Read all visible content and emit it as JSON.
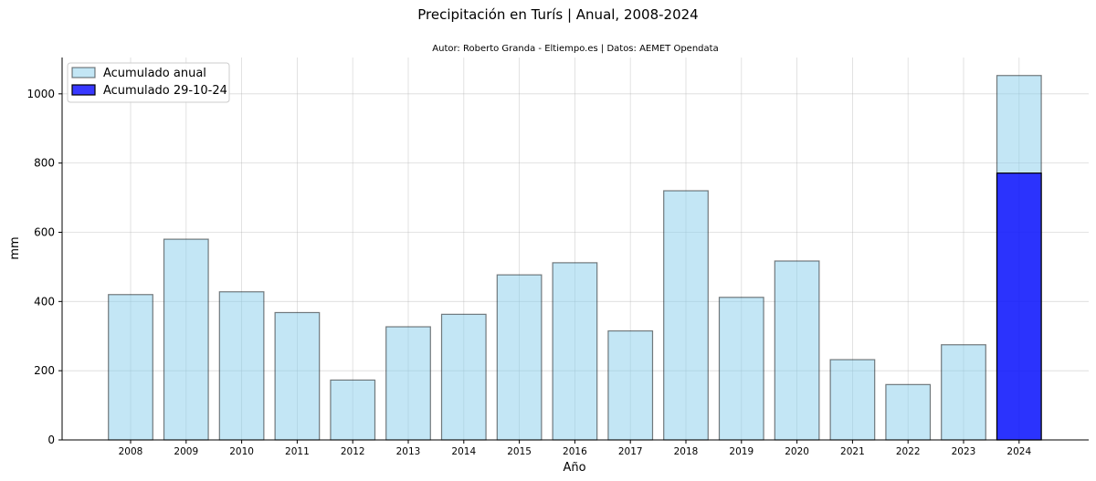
{
  "chart_data": {
    "type": "bar",
    "title": "Precipitación en Turís | Anual, 2008-2024",
    "subtitle": "Autor: Roberto Granda - Eltiempo.es | Datos: AEMET Opendata",
    "xlabel": "Año",
    "ylabel": "mm",
    "categories": [
      "2008",
      "2009",
      "2010",
      "2011",
      "2012",
      "2013",
      "2014",
      "2015",
      "2016",
      "2017",
      "2018",
      "2019",
      "2020",
      "2021",
      "2022",
      "2023",
      "2024"
    ],
    "series": [
      {
        "name": "Acumulado anual",
        "color": "#87ceeb",
        "values": [
          420,
          580,
          428,
          368,
          173,
          327,
          363,
          477,
          512,
          315,
          720,
          412,
          517,
          232,
          160,
          275,
          1053
        ]
      },
      {
        "name": "Acumulado 29-10-24",
        "color": "#0000ff",
        "values": [
          null,
          null,
          null,
          null,
          null,
          null,
          null,
          null,
          null,
          null,
          null,
          null,
          null,
          null,
          null,
          null,
          771
        ]
      }
    ],
    "ylim": [
      0,
      1105
    ],
    "yticks": [
      0,
      200,
      400,
      600,
      800,
      1000
    ],
    "grid": true,
    "legend": "top-left"
  }
}
